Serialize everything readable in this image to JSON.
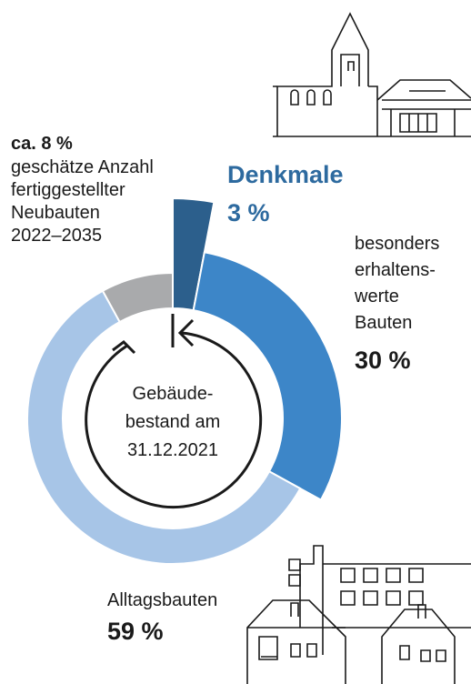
{
  "chart_data": {
    "type": "donut",
    "categories": [
      "Denkmale",
      "besonders\nerhaltens-\nwerte\nBauten",
      "Alltagsbauten",
      "geschätze Anzahl\nfertiggestellter\nNeubauten\n2022–2035"
    ],
    "values": [
      3,
      30,
      59,
      8
    ],
    "value_labels": [
      "3 %",
      "30 %",
      "59 %",
      "ca. 8 %"
    ],
    "colors": [
      "#2c5f8c",
      "#3d86c8",
      "#a7c5e7",
      "#a9aaac"
    ],
    "center_label": "Gebäude-\nbestand am\n31.12.2021"
  }
}
